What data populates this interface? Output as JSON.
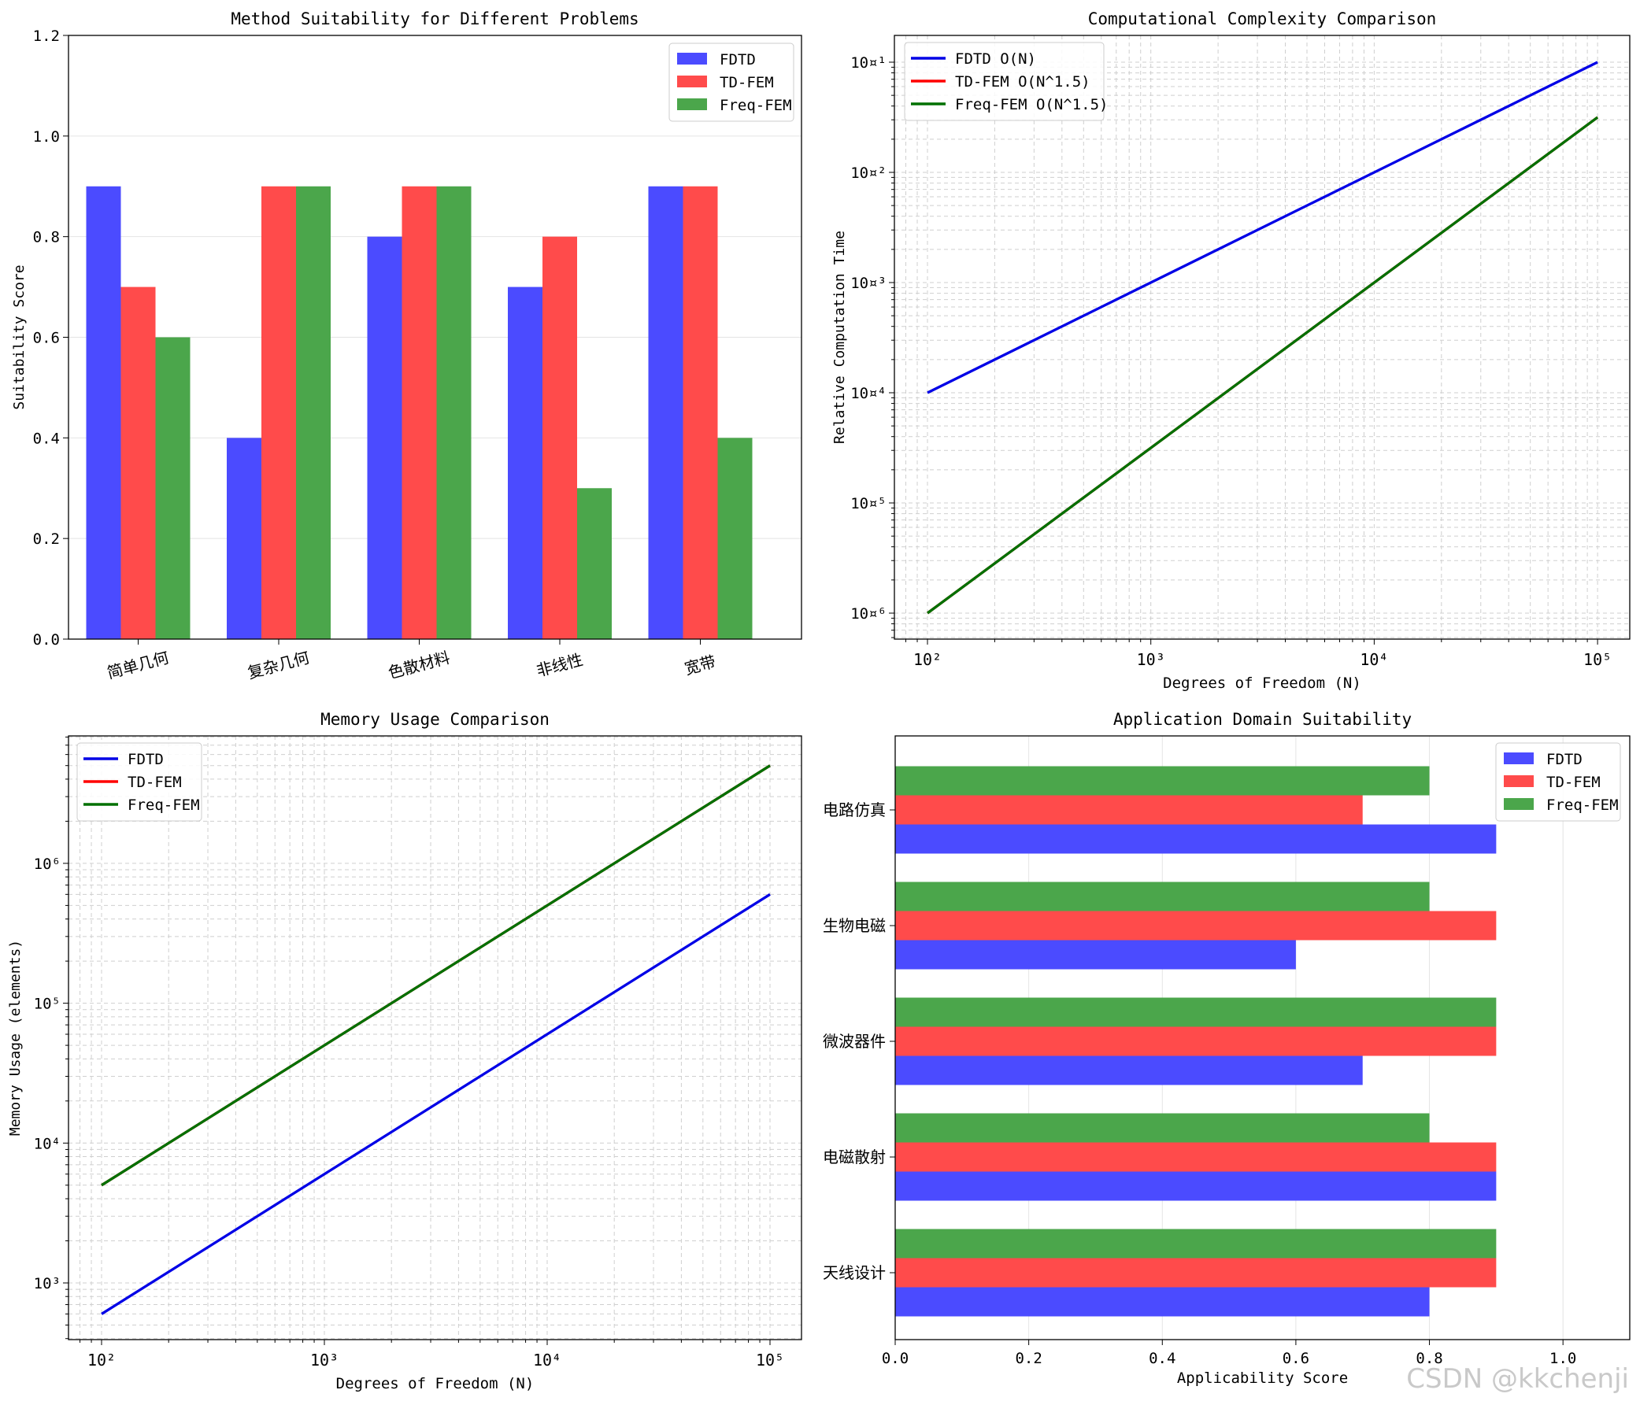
{
  "chart_data": [
    {
      "type": "bar",
      "title": "Method Suitability for Different Problems",
      "xlabel": "",
      "ylabel": "Suitability Score",
      "categories": [
        "简单几何",
        "复杂几何",
        "色散材料",
        "非线性",
        "宽带"
      ],
      "series": [
        {
          "name": "FDTD",
          "values": [
            0.9,
            0.4,
            0.8,
            0.7,
            0.9
          ],
          "color": "#4b4bff"
        },
        {
          "name": "TD-FEM",
          "values": [
            0.7,
            0.9,
            0.9,
            0.8,
            0.9
          ],
          "color": "#ff4b4b"
        },
        {
          "name": "Freq-FEM",
          "values": [
            0.6,
            0.9,
            0.9,
            0.3,
            0.4
          ],
          "color": "#4ba64b"
        }
      ],
      "ylim": [
        0,
        1.2
      ],
      "yticks": [
        "0.0",
        "0.2",
        "0.4",
        "0.6",
        "0.8",
        "1.0",
        "1.2"
      ],
      "grid": "y",
      "legend": "top-right"
    },
    {
      "type": "line",
      "title": "Computational Complexity Comparison",
      "xlabel": "Degrees of Freedom (N)",
      "ylabel": "Relative Computation Time",
      "xscale": "log",
      "yscale": "log",
      "xlim": [
        100,
        100000
      ],
      "ylim": [
        1e-06,
        0.1
      ],
      "xticks": [
        "10²",
        "10³",
        "10⁴",
        "10⁵"
      ],
      "yticks": [
        "10¤¹",
        "10¤²",
        "10¤³",
        "10¤⁴",
        "10¤⁵",
        "10¤⁶"
      ],
      "series": [
        {
          "name": "FDTD O(N)",
          "color": "#0000e6",
          "x": [
            100,
            100000
          ],
          "y": [
            0.0001,
            0.1
          ]
        },
        {
          "name": "TD-FEM O(N^1.5)",
          "color": "#ff0000",
          "x": [
            100,
            100000
          ],
          "y": [
            1e-06,
            0.0316
          ]
        },
        {
          "name": "Freq-FEM O(N^1.5)",
          "color": "#007000",
          "x": [
            100,
            100000
          ],
          "y": [
            1e-06,
            0.0316
          ]
        }
      ],
      "grid": "both-dashed",
      "legend": "top-left"
    },
    {
      "type": "line",
      "title": "Memory Usage Comparison",
      "xlabel": "Degrees of Freedom (N)",
      "ylabel": "Memory Usage (elements)",
      "xscale": "log",
      "yscale": "log",
      "xlim": [
        100,
        100000
      ],
      "ylim": [
        600,
        5000000
      ],
      "xticks": [
        "10²",
        "10³",
        "10⁴",
        "10⁵"
      ],
      "yticks": [
        "10³",
        "10⁴",
        "10⁵",
        "10⁶"
      ],
      "series": [
        {
          "name": "FDTD",
          "color": "#0000e6",
          "x": [
            100,
            100000
          ],
          "y": [
            600,
            600000
          ]
        },
        {
          "name": "TD-FEM",
          "color": "#ff0000",
          "x": [
            100,
            100000
          ],
          "y": [
            5000,
            5000000
          ]
        },
        {
          "name": "Freq-FEM",
          "color": "#007000",
          "x": [
            100,
            100000
          ],
          "y": [
            5000,
            5000000
          ]
        }
      ],
      "grid": "both-dashed",
      "legend": "top-left"
    },
    {
      "type": "bar",
      "orientation": "horizontal",
      "title": "Application Domain Suitability",
      "xlabel": "Applicability Score",
      "ylabel": "",
      "categories": [
        "天线设计",
        "电磁散射",
        "微波器件",
        "生物电磁",
        "电路仿真"
      ],
      "series": [
        {
          "name": "FDTD",
          "values": [
            0.8,
            0.9,
            0.7,
            0.6,
            0.9
          ],
          "color": "#4b4bff"
        },
        {
          "name": "TD-FEM",
          "values": [
            0.9,
            0.9,
            0.9,
            0.9,
            0.7
          ],
          "color": "#ff4b4b"
        },
        {
          "name": "Freq-FEM",
          "values": [
            0.9,
            0.8,
            0.9,
            0.8,
            0.8
          ],
          "color": "#4ba64b"
        }
      ],
      "xlim": [
        0,
        1.1
      ],
      "xticks": [
        "0.0",
        "0.2",
        "0.4",
        "0.6",
        "0.8",
        "1.0"
      ],
      "grid": "x",
      "legend": "top-right"
    }
  ],
  "watermark": "CSDN @kkchenji"
}
